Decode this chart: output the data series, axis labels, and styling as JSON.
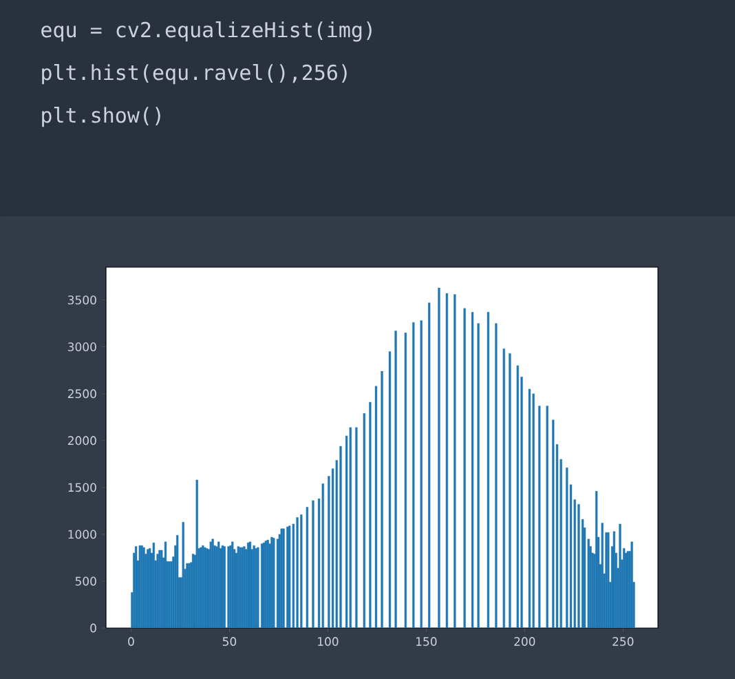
{
  "chart_data": {
    "type": "histogram",
    "annotations": [
      "equ = cv2.equalizeHist(img)",
      "plt.hist(equ.ravel(),256)",
      "plt.show()"
    ],
    "bins": [
      0,
      1,
      2,
      3,
      4,
      5,
      6,
      7,
      8,
      9,
      10,
      11,
      12,
      13,
      14,
      15,
      16,
      17,
      18,
      19,
      20,
      21,
      22,
      23,
      24,
      25,
      26,
      27,
      28,
      29,
      30,
      31,
      32,
      33,
      34,
      35,
      36,
      37,
      38,
      39,
      40,
      41,
      42,
      43,
      44,
      45,
      46,
      47,
      48,
      49,
      50,
      51,
      52,
      53,
      54,
      55,
      56,
      57,
      58,
      59,
      60,
      61,
      62,
      63,
      64,
      65,
      66,
      67,
      68,
      69,
      70,
      71,
      72,
      73,
      74,
      75,
      76,
      77,
      78,
      79,
      80,
      81,
      82,
      83,
      84,
      85,
      86,
      87,
      88,
      89,
      90,
      91,
      92,
      93,
      94,
      95,
      96,
      97,
      98,
      99,
      100,
      101,
      102,
      103,
      104,
      105,
      106,
      107,
      108,
      109,
      110,
      111,
      112,
      113,
      114,
      115,
      116,
      117,
      118,
      119,
      120,
      121,
      122,
      123,
      124,
      125,
      126,
      127,
      128,
      129,
      130,
      131,
      132,
      133,
      134,
      135,
      136,
      137,
      138,
      139,
      140,
      141,
      142,
      143,
      144,
      145,
      146,
      147,
      148,
      149,
      150,
      151,
      152,
      153,
      154,
      155,
      156,
      157,
      158,
      159,
      160,
      161,
      162,
      163,
      164,
      165,
      166,
      167,
      168,
      169,
      170,
      171,
      172,
      173,
      174,
      175,
      176,
      177,
      178,
      179,
      180,
      181,
      182,
      183,
      184,
      185,
      186,
      187,
      188,
      189,
      190,
      191,
      192,
      193,
      194,
      195,
      196,
      197,
      198,
      199,
      200,
      201,
      202,
      203,
      204,
      205,
      206,
      207,
      208,
      209,
      210,
      211,
      212,
      213,
      214,
      215,
      216,
      217,
      218,
      219,
      220,
      221,
      222,
      223,
      224,
      225,
      226,
      227,
      228,
      229,
      230,
      231,
      232,
      233,
      234,
      235,
      236,
      237,
      238,
      239,
      240,
      241,
      242,
      243,
      244,
      245,
      246,
      247,
      248,
      249,
      250,
      251,
      252,
      253,
      254,
      255,
      256
    ],
    "values": [
      380,
      800,
      870,
      720,
      880,
      880,
      860,
      790,
      840,
      850,
      800,
      910,
      720,
      790,
      830,
      830,
      750,
      920,
      710,
      710,
      710,
      760,
      880,
      990,
      540,
      540,
      1130,
      630,
      690,
      690,
      700,
      790,
      780,
      1580,
      850,
      860,
      880,
      860,
      850,
      840,
      920,
      950,
      880,
      870,
      920,
      850,
      880,
      870,
      0,
      870,
      880,
      920,
      840,
      800,
      870,
      860,
      860,
      870,
      840,
      910,
      920,
      840,
      880,
      850,
      860,
      0,
      900,
      910,
      930,
      940,
      900,
      970,
      960,
      0,
      950,
      1000,
      1060,
      1060,
      0,
      1080,
      1090,
      0,
      1110,
      0,
      1180,
      0,
      1210,
      0,
      0,
      1290,
      0,
      0,
      1360,
      0,
      0,
      1380,
      0,
      1540,
      0,
      0,
      1620,
      0,
      1700,
      0,
      1790,
      0,
      1940,
      0,
      0,
      2050,
      0,
      2140,
      0,
      0,
      2140,
      0,
      0,
      0,
      2290,
      0,
      0,
      2410,
      0,
      0,
      2580,
      0,
      0,
      2740,
      0,
      0,
      0,
      2950,
      0,
      0,
      3170,
      0,
      0,
      0,
      0,
      3150,
      0,
      0,
      0,
      3260,
      0,
      0,
      0,
      3280,
      0,
      0,
      0,
      3470,
      0,
      0,
      0,
      0,
      3630,
      0,
      0,
      0,
      3570,
      0,
      0,
      0,
      3560,
      0,
      0,
      0,
      0,
      3410,
      0,
      0,
      0,
      3370,
      0,
      0,
      3250,
      0,
      0,
      0,
      0,
      3370,
      0,
      0,
      0,
      3250,
      0,
      0,
      0,
      2980,
      0,
      0,
      2930,
      0,
      0,
      0,
      2800,
      0,
      2680,
      0,
      0,
      0,
      2550,
      0,
      2500,
      0,
      0,
      2370,
      0,
      0,
      0,
      2370,
      0,
      0,
      2220,
      0,
      1960,
      0,
      1800,
      0,
      0,
      1710,
      0,
      1530,
      0,
      1370,
      0,
      1320,
      0,
      1160,
      1070,
      0,
      950,
      870,
      800,
      790,
      1460,
      970,
      680,
      1120,
      580,
      1020,
      1020,
      490,
      870,
      1030,
      800,
      640,
      1110,
      730,
      850,
      800,
      820,
      820,
      920,
      490
    ],
    "color": "#1f77b4",
    "xlim": [
      -12.75,
      267.75
    ],
    "ylim": [
      0,
      3850
    ],
    "xticks": [
      0,
      50,
      100,
      150,
      200,
      250
    ],
    "yticks": [
      0,
      500,
      1000,
      1500,
      2000,
      2500,
      3000,
      3500
    ]
  }
}
